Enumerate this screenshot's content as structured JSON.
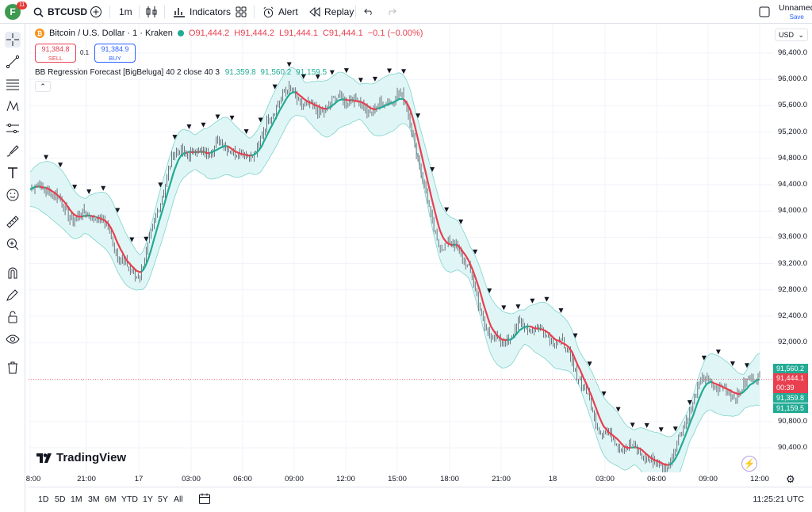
{
  "topbar": {
    "avatar_letter": "F",
    "notif_count": "11",
    "symbol": "BTCUSD",
    "interval": "1m",
    "indicators_label": "Indicators",
    "alert_label": "Alert",
    "replay_label": "Replay",
    "layout_name": "Unnamed",
    "save_label": "Save"
  },
  "legend": {
    "title": "Bitcoin / U.S. Dollar · 1 · Kraken",
    "o": "O91,444.2",
    "h": "H91,444.2",
    "l": "L91,444.1",
    "c": "C91,444.1",
    "chg": "−0.1 (−0.00%)",
    "sell_price": "91,384.8",
    "sell_label": "SELL",
    "spread": "0.1",
    "buy_price": "91,384.9",
    "buy_label": "BUY",
    "indicator_name": "BB Regression Forecast [BigBeluga] 40 2 close 40 3",
    "ind_v1": "91,359.8",
    "ind_v2": "91,560.2",
    "ind_v3": "91,159.5"
  },
  "yaxis": {
    "currency": "USD",
    "ticks": [
      "96,400.0",
      "96,000.0",
      "95,600.0",
      "95,200.0",
      "94,800.0",
      "94,400.0",
      "94,000.0",
      "93,600.0",
      "93,200.0",
      "92,800.0",
      "92,400.0",
      "92,000.0",
      "90,800.0",
      "90,400.0"
    ],
    "label_upper": "91,560.2",
    "label_last": "91,444.1",
    "label_timer": "00:39",
    "label_mid": "91,359.8",
    "label_lower": "91,159.5"
  },
  "xaxis": {
    "ticks": [
      "8:00",
      "21:00",
      "17",
      "03:00",
      "06:00",
      "09:00",
      "12:00",
      "15:00",
      "18:00",
      "21:00",
      "18",
      "03:00",
      "06:00",
      "09:00",
      "12:00"
    ]
  },
  "bottom": {
    "ranges": [
      "1D",
      "5D",
      "1M",
      "3M",
      "6M",
      "YTD",
      "1Y",
      "5Y",
      "All"
    ],
    "clock": "11:25:21 UTC"
  },
  "watermark": "TradingView",
  "colors": {
    "up_band": "#22ab94",
    "down_line": "#e8404f",
    "band_fill": "#d8f4f4",
    "accent": "#2962ff"
  },
  "chart_data": {
    "type": "line",
    "x": [
      "8:00",
      "21:00",
      "17",
      "03:00",
      "06:00",
      "09:00",
      "12:00",
      "15:00",
      "18:00",
      "21:00",
      "18",
      "03:00",
      "06:00",
      "09:00",
      "12:00"
    ],
    "series": [
      {
        "values": [
          94300,
          94000,
          93150,
          95000,
          94850,
          95700,
          95600,
          95700,
          93500,
          92100,
          92200,
          90700,
          90100,
          91300,
          91400
        ]
      }
    ],
    "ylim": [
      90200,
      96600
    ],
    "ylabel": "",
    "xlabel": ""
  }
}
